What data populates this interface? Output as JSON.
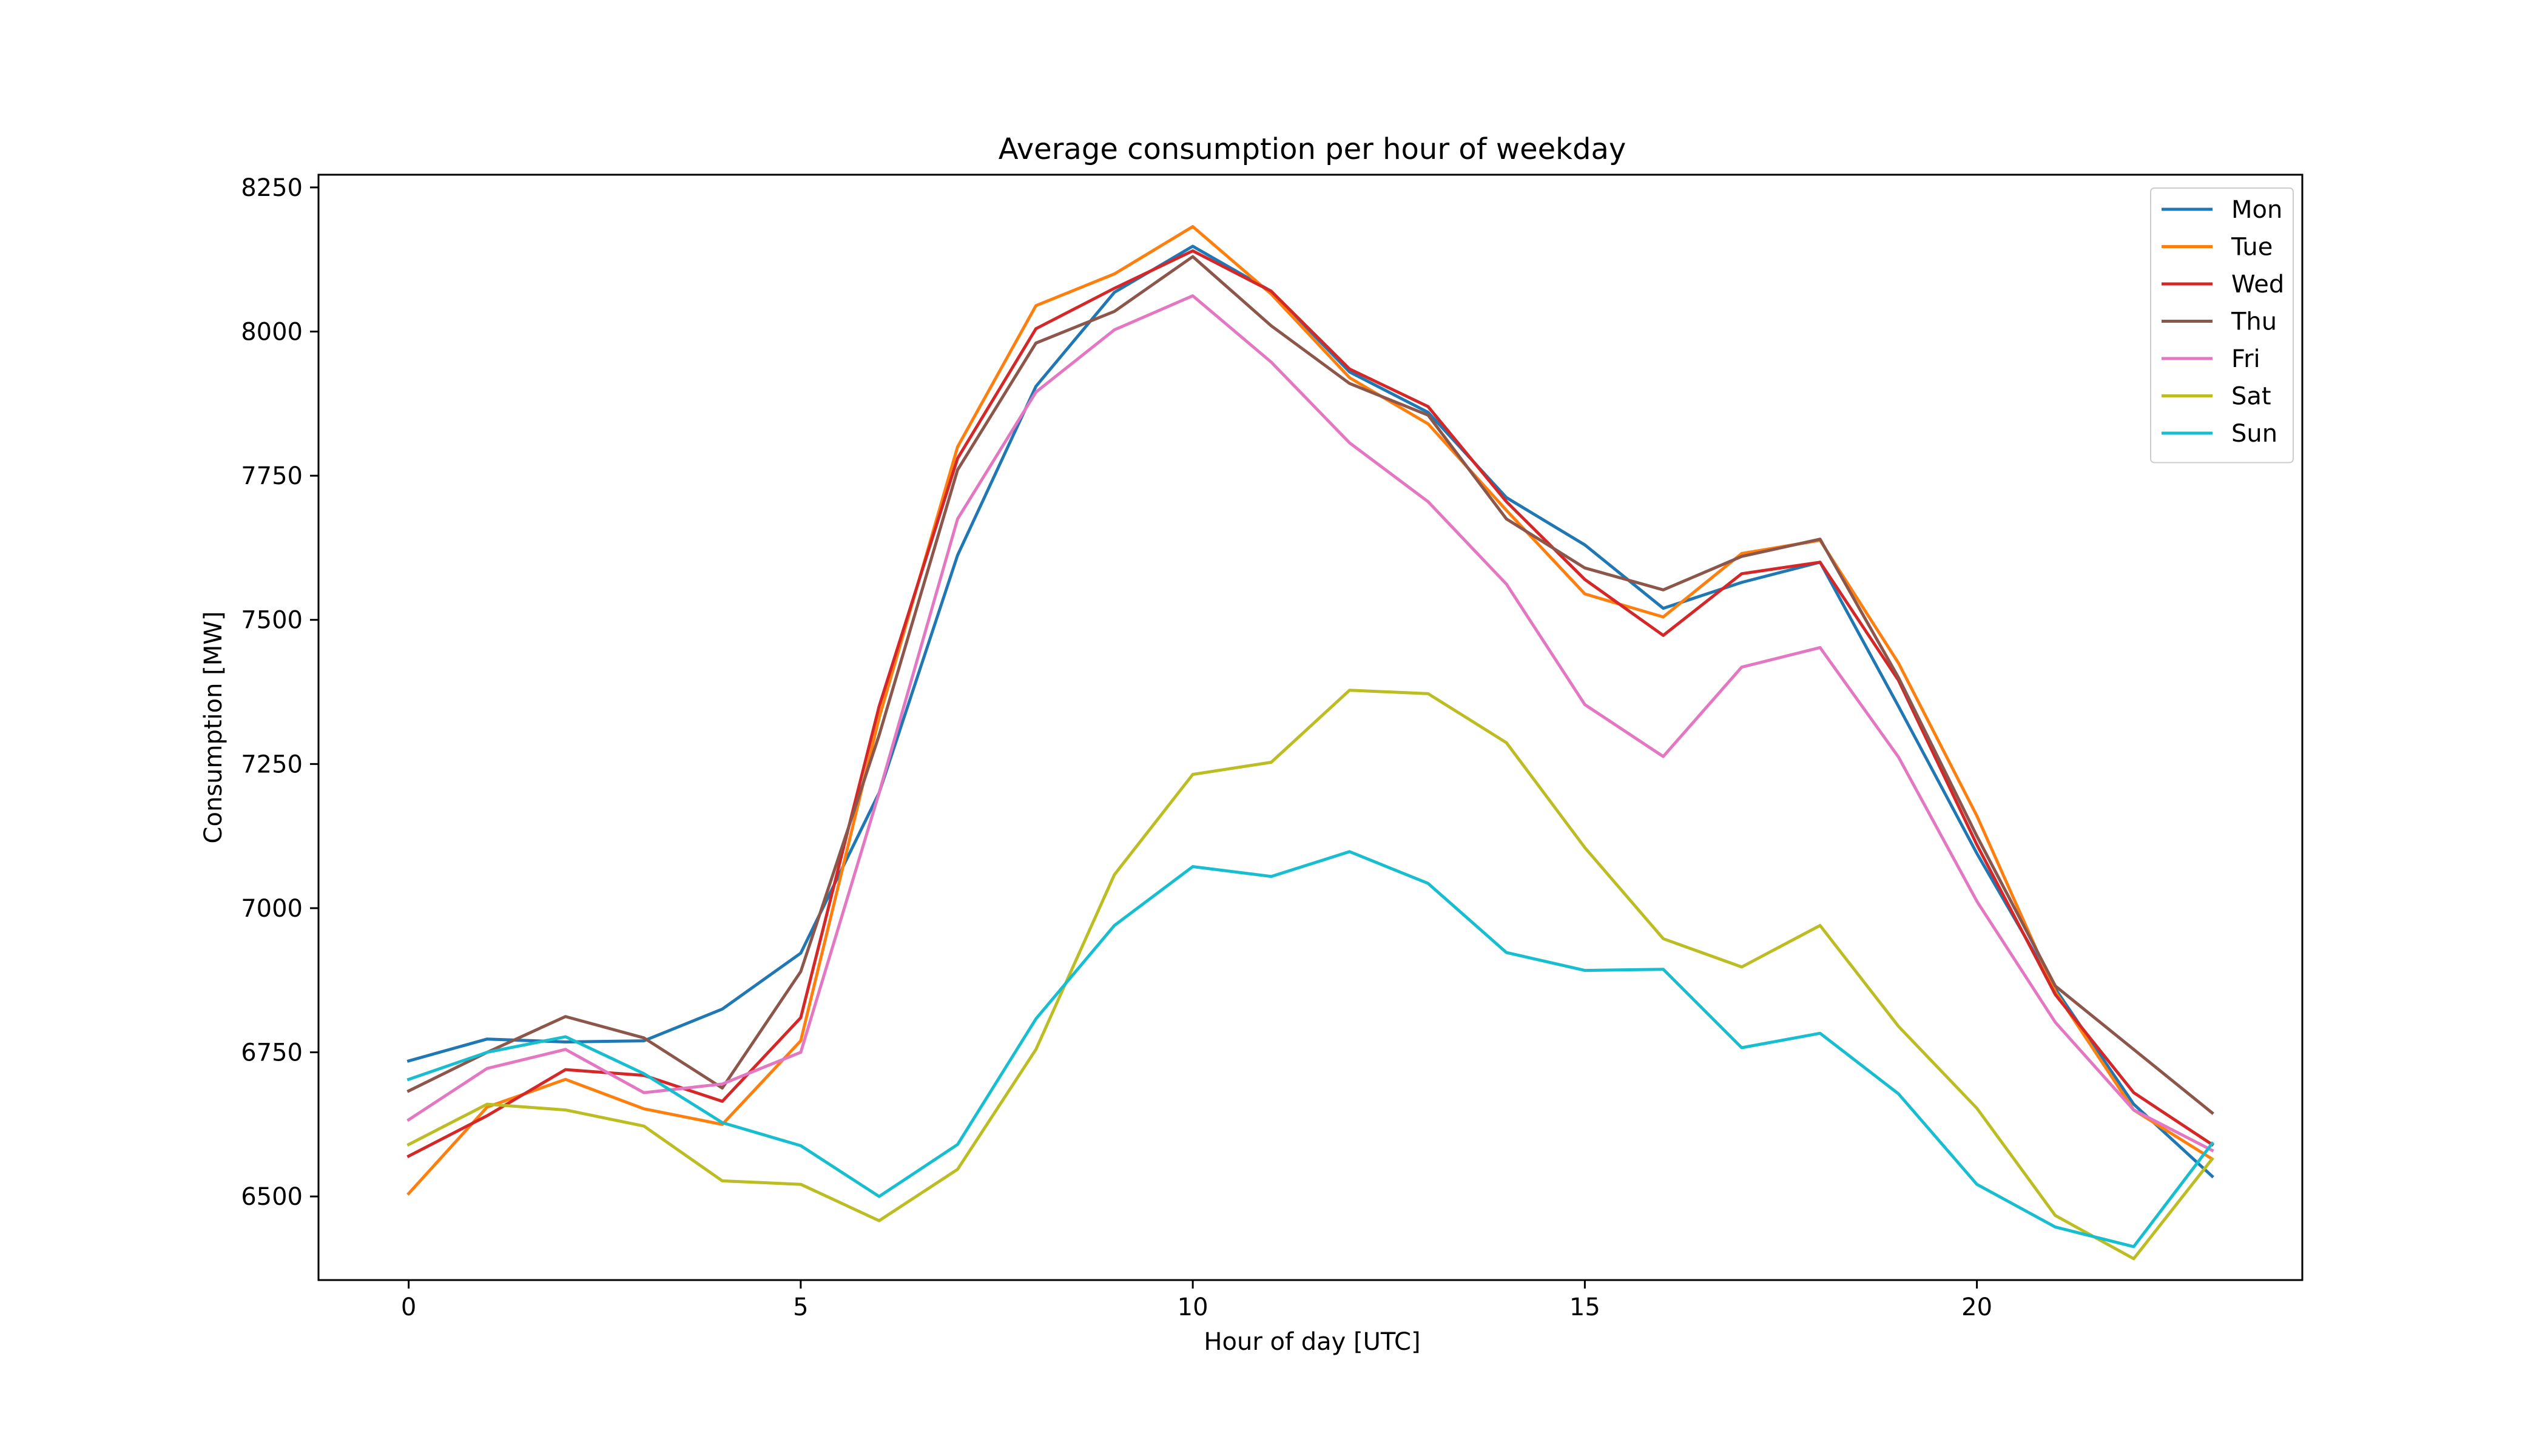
{
  "chart_data": {
    "type": "line",
    "title": "Average consumption per hour of weekday",
    "xlabel": "Hour of day [UTC]",
    "ylabel": "Consumption [MW]",
    "xlim": [
      -1.15,
      24.15
    ],
    "ylim": [
      6355,
      8272
    ],
    "xticks": [
      0,
      5,
      10,
      15,
      20
    ],
    "yticks": [
      6500,
      6750,
      7000,
      7250,
      7500,
      7750,
      8000,
      8250
    ],
    "grid": false,
    "legend_position": "top-right",
    "x": [
      0,
      1,
      2,
      3,
      4,
      5,
      6,
      7,
      8,
      9,
      10,
      11,
      12,
      13,
      14,
      15,
      16,
      17,
      18,
      19,
      20,
      21,
      22,
      23
    ],
    "series": [
      {
        "name": "Mon",
        "color": "#1f77b4",
        "values": [
          6735,
          6773,
          6768,
          6770,
          6825,
          6922,
          7200,
          7612,
          7905,
          8068,
          8148,
          8070,
          7930,
          7860,
          7712,
          7630,
          7520,
          7565,
          7600,
          7350,
          7095,
          6860,
          6660,
          6535
        ]
      },
      {
        "name": "Tue",
        "color": "#ff7f0e",
        "values": [
          6505,
          6655,
          6703,
          6652,
          6625,
          6770,
          7330,
          7800,
          8045,
          8100,
          8182,
          8065,
          7920,
          7840,
          7690,
          7545,
          7505,
          7615,
          7638,
          7425,
          7160,
          6855,
          6650,
          6565
        ]
      },
      {
        "name": "Wed",
        "color": "#d62728",
        "values": [
          6570,
          6640,
          6720,
          6710,
          6665,
          6810,
          7350,
          7780,
          8005,
          8075,
          8140,
          8070,
          7935,
          7870,
          7705,
          7570,
          7473,
          7580,
          7600,
          7395,
          7110,
          6850,
          6680,
          6590
        ]
      },
      {
        "name": "Thu",
        "color": "#8c564b",
        "values": [
          6683,
          6750,
          6812,
          6775,
          6688,
          6890,
          7300,
          7760,
          7980,
          8035,
          8130,
          8010,
          7910,
          7855,
          7675,
          7590,
          7552,
          7610,
          7640,
          7400,
          7125,
          6865,
          6755,
          6645
        ]
      },
      {
        "name": "Fri",
        "color": "#e377c2",
        "values": [
          6633,
          6722,
          6755,
          6680,
          6695,
          6750,
          7200,
          7675,
          7895,
          8003,
          8062,
          7947,
          7807,
          7705,
          7562,
          7353,
          7263,
          7418,
          7452,
          7262,
          7012,
          6802,
          6650,
          6580
        ]
      },
      {
        "name": "Sat",
        "color": "#bcbd22",
        "values": [
          6590,
          6660,
          6650,
          6622,
          6527,
          6521,
          6458,
          6547,
          6755,
          7058,
          7232,
          7253,
          7378,
          7372,
          7287,
          7105,
          6947,
          6898,
          6970,
          6795,
          6653,
          6467,
          6392,
          6565
        ]
      },
      {
        "name": "Sun",
        "color": "#17becf",
        "values": [
          6703,
          6750,
          6777,
          6713,
          6628,
          6588,
          6500,
          6590,
          6808,
          6970,
          7072,
          7055,
          7098,
          7043,
          6923,
          6892,
          6894,
          6758,
          6783,
          6678,
          6521,
          6447,
          6413,
          6592
        ]
      }
    ]
  }
}
